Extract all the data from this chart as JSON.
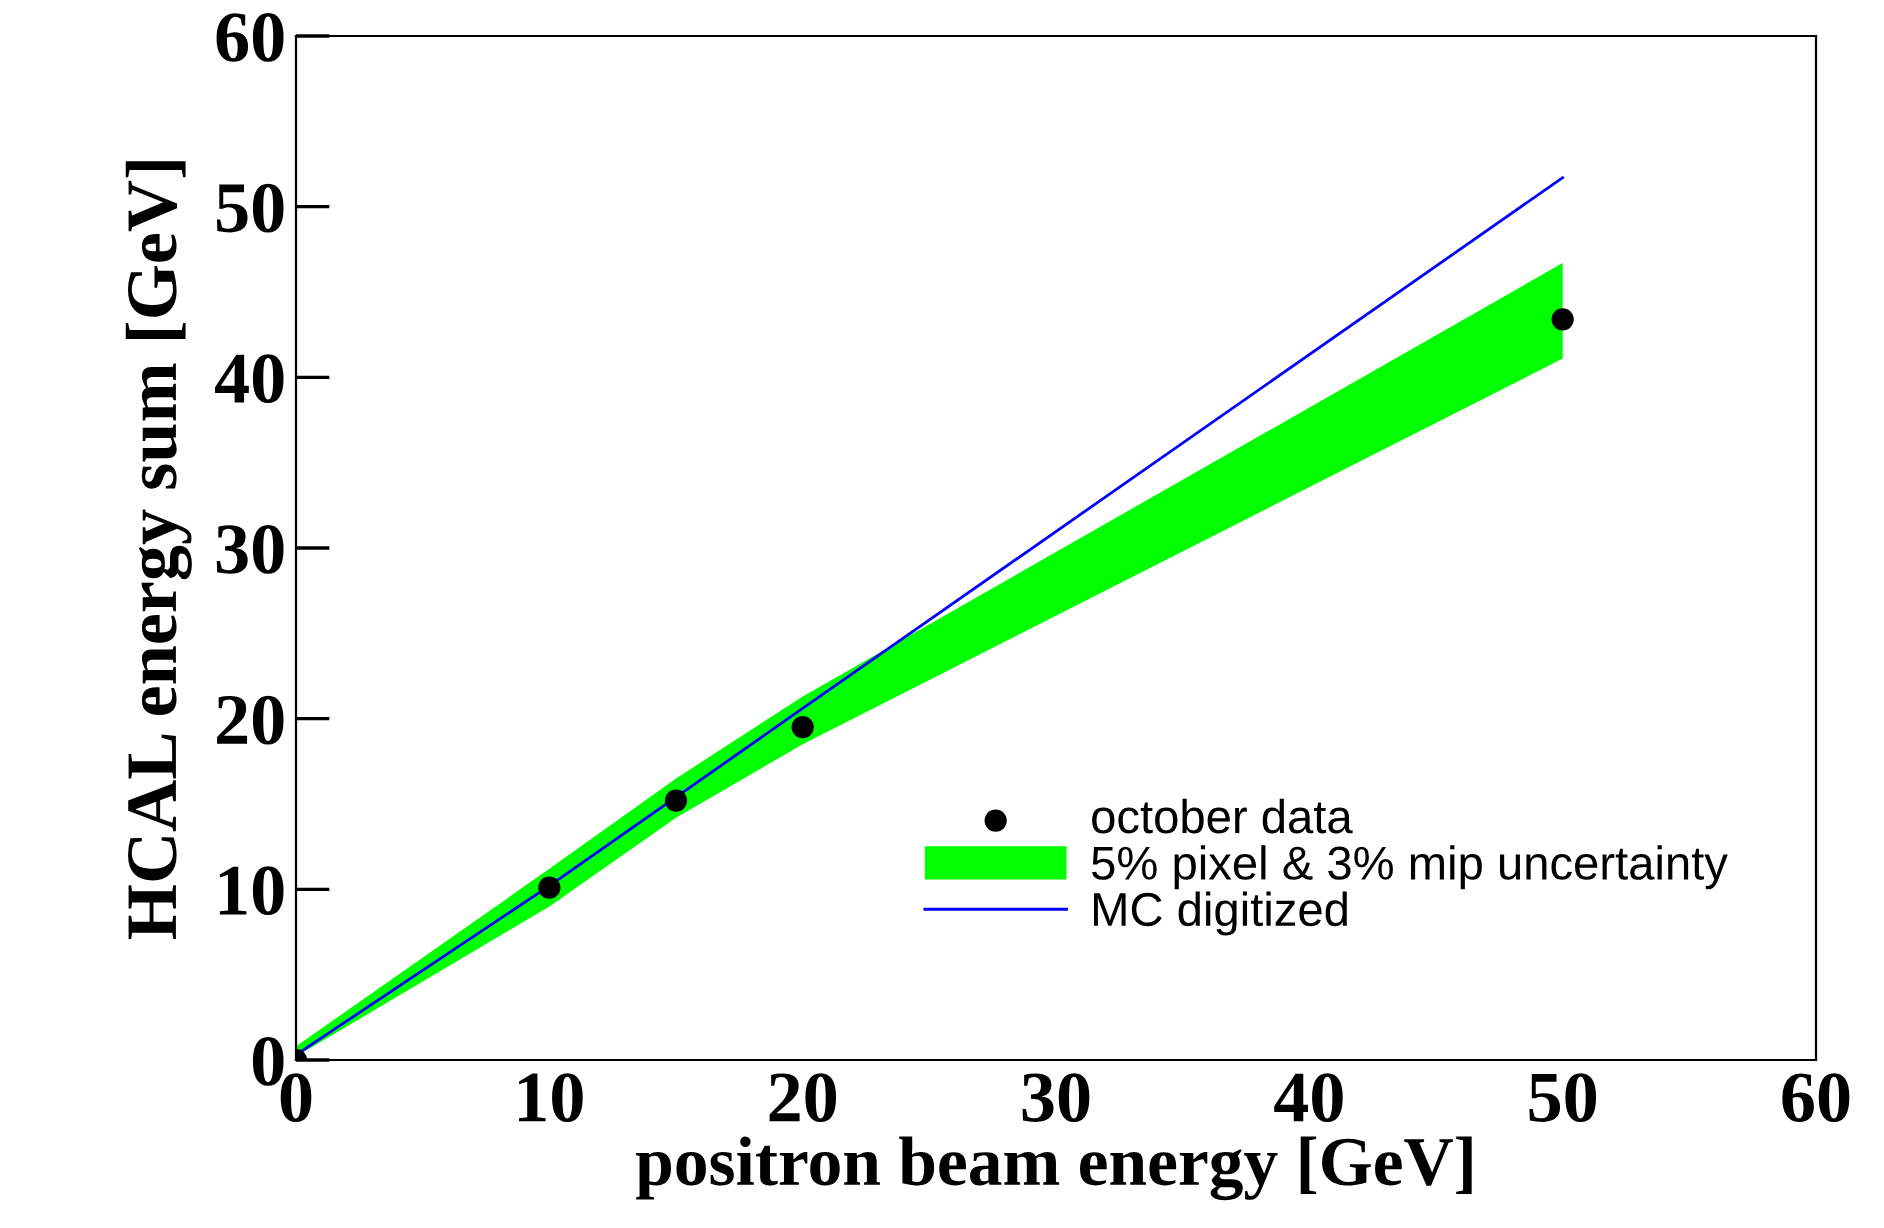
{
  "chart_data": {
    "type": "scatter",
    "xlabel": "positron beam energy [GeV]",
    "ylabel": "HCAL energy sum [GeV]",
    "xlim": [
      0,
      60
    ],
    "ylim": [
      0,
      60
    ],
    "xticks": [
      0,
      10,
      20,
      30,
      40,
      50,
      60
    ],
    "yticks": [
      0,
      10,
      20,
      30,
      40,
      50,
      60
    ],
    "grid": false,
    "legend": "bottom right",
    "series": [
      {
        "name": "october data",
        "color": "#000000",
        "marker": "circle",
        "x": [
          0,
          10,
          15,
          20,
          50
        ],
        "values": [
          0,
          10.1,
          15.2,
          19.5,
          43.4
        ]
      },
      {
        "name": "5% pixel & 3% mip uncertainty",
        "type": "line",
        "color": "#00ff00",
        "x": [
          0,
          10,
          15,
          20,
          50
        ],
        "values": [
          null,
          null,
          null,
          null,
          null
        ],
        "lower": [
          0.2,
          9.0,
          14.2,
          18.5,
          41.1
        ],
        "upper": [
          0.8,
          11.2,
          16.5,
          21.3,
          46.7
        ]
      },
      {
        "name": "MC digitized",
        "type": "line",
        "color": "#0000ff",
        "line_style": "solid",
        "x": [
          0,
          10,
          20,
          50
        ],
        "values": [
          0.3,
          10.2,
          20.6,
          51.7
        ]
      }
    ]
  }
}
